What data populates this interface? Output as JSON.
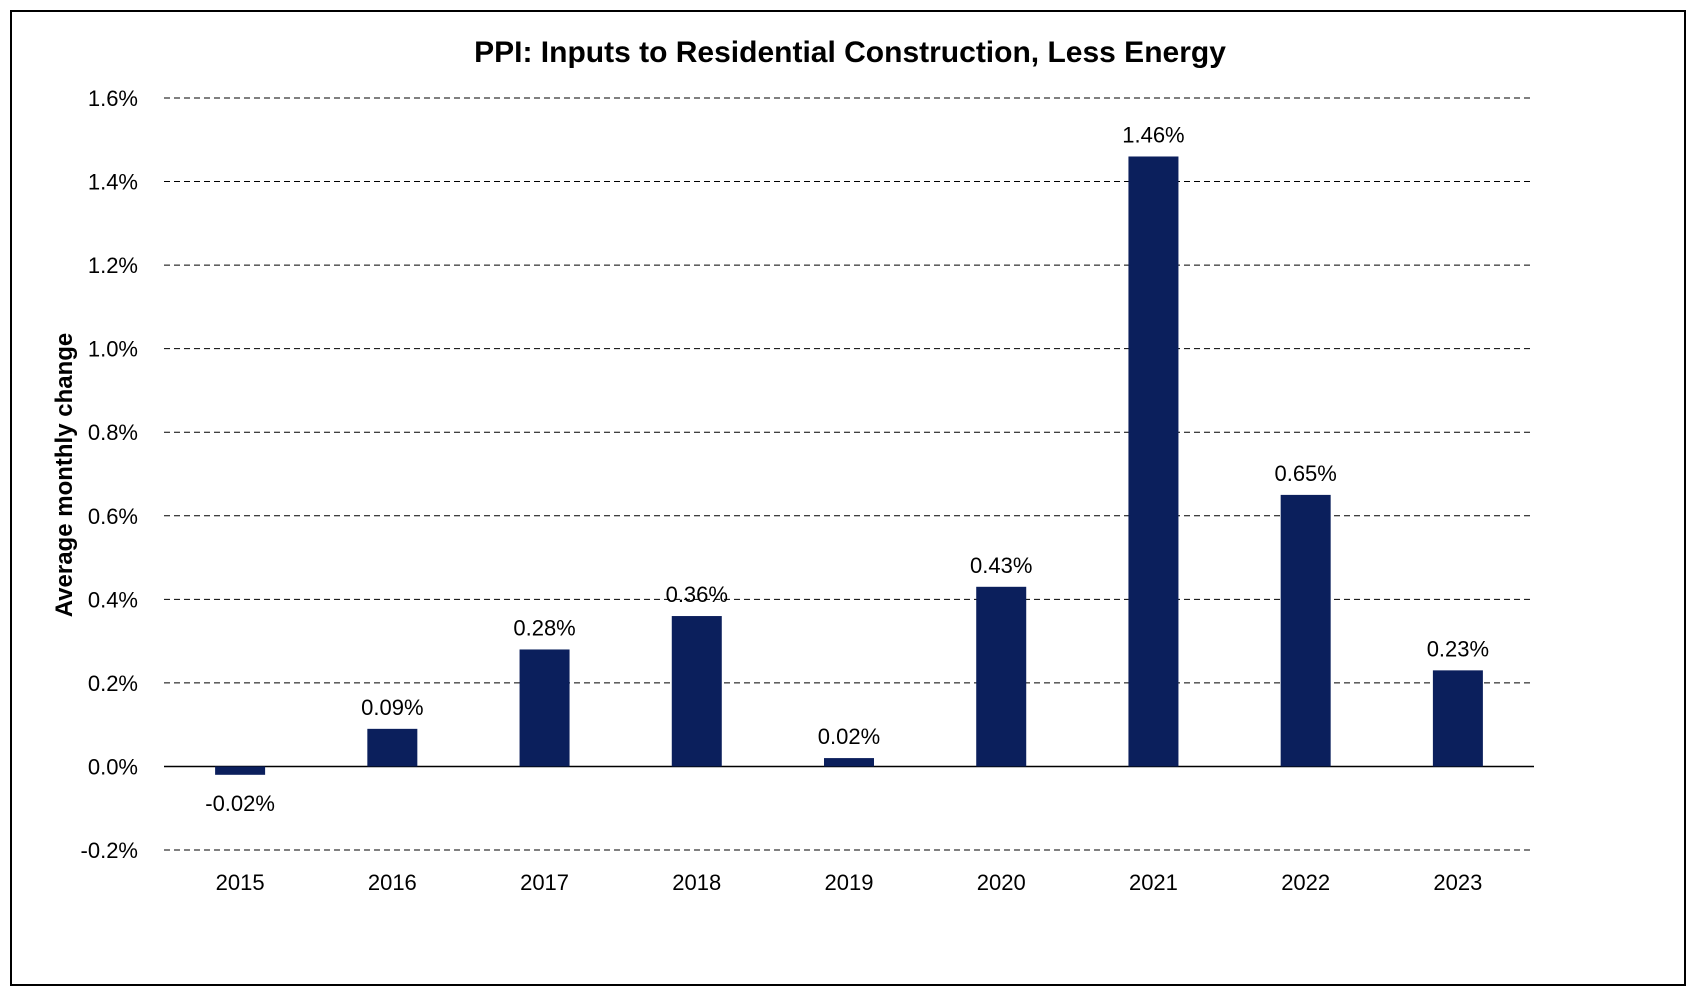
{
  "chart_data": {
    "type": "bar",
    "title": "PPI: Inputs to Residential Construction, Less Energy",
    "xlabel": "",
    "ylabel": "Average monthly change",
    "categories": [
      "2015",
      "2016",
      "2017",
      "2018",
      "2019",
      "2020",
      "2021",
      "2022",
      "2023"
    ],
    "values": [
      -0.02,
      0.09,
      0.28,
      0.36,
      0.02,
      0.43,
      1.46,
      0.65,
      0.23
    ],
    "data_labels": [
      "-0.02%",
      "0.09%",
      "0.28%",
      "0.36%",
      "0.02%",
      "0.43%",
      "1.46%",
      "0.65%",
      "0.23%"
    ],
    "y_ticks": [
      -0.2,
      0.0,
      0.2,
      0.4,
      0.6,
      0.8,
      1.0,
      1.2,
      1.4,
      1.6
    ],
    "y_tick_labels": [
      "-0.2%",
      "0.0%",
      "0.2%",
      "0.4%",
      "0.6%",
      "0.8%",
      "1.0%",
      "1.2%",
      "1.4%",
      "1.6%"
    ],
    "ylim": [
      -0.2,
      1.6
    ],
    "grid": "horizontal dashed",
    "legend": "none",
    "bar_color": "#0b1f5c"
  }
}
